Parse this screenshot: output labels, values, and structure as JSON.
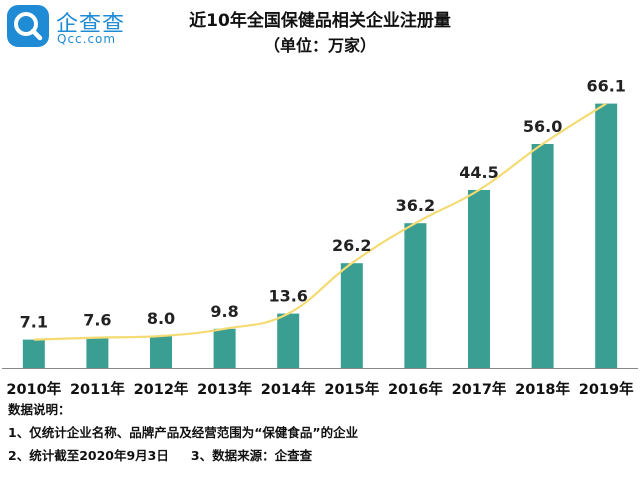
{
  "brand": {
    "name": "企查查",
    "domain": "Qcc.com",
    "accent": "#1e8bd4"
  },
  "chart_data": {
    "type": "bar",
    "title": "近10年全国保健品相关企业注册量",
    "subtitle": "（单位：万家）",
    "categories": [
      "2010年",
      "2011年",
      "2012年",
      "2013年",
      "2014年",
      "2015年",
      "2016年",
      "2017年",
      "2018年",
      "2019年"
    ],
    "values": [
      7.1,
      7.6,
      8.0,
      9.8,
      13.6,
      26.2,
      36.2,
      44.5,
      56.0,
      66.1
    ],
    "value_labels": [
      "7.1",
      "7.6",
      "8.0",
      "9.8",
      "13.6",
      "26.2",
      "36.2",
      "44.5",
      "56.0",
      "66.1"
    ],
    "overlay": "line",
    "xlabel": "",
    "ylabel": "",
    "ylim": [
      0,
      70
    ],
    "grid": false,
    "bar_color": "#3a9e93",
    "line_color": "#f4db73"
  },
  "notes": {
    "heading": "数据说明：",
    "line1": "1、仅统计企业名称、品牌产品及经营范围为“保健食品”的企业",
    "line2a": "2、统计截至2020年9月3日",
    "line2b": "3、数据来源：企查查"
  }
}
